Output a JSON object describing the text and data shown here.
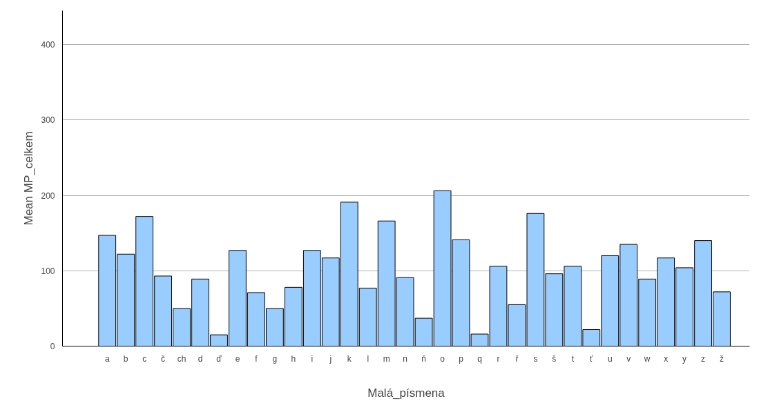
{
  "chart_data": {
    "type": "bar",
    "xlabel": "Malá_písmena",
    "ylabel": "Mean MP_celkem",
    "categories": [
      "a",
      "b",
      "c",
      "č",
      "ch",
      "d",
      "ď",
      "e",
      "f",
      "g",
      "h",
      "i",
      "j",
      "k",
      "l",
      "m",
      "n",
      "ň",
      "o",
      "p",
      "q",
      "r",
      "ř",
      "s",
      "š",
      "t",
      "ť",
      "u",
      "v",
      "w",
      "x",
      "y",
      "z",
      "ž"
    ],
    "values": [
      147,
      122,
      172,
      93,
      50,
      89,
      15,
      127,
      71,
      50,
      78,
      127,
      117,
      191,
      77,
      166,
      91,
      37,
      206,
      141,
      16,
      106,
      55,
      176,
      96,
      106,
      22,
      120,
      135,
      89,
      117,
      104,
      140,
      72
    ],
    "color": "#99ccff",
    "ylim": [
      0,
      445
    ],
    "yticks": [
      0,
      100,
      200,
      300,
      400
    ],
    "grid": "y"
  }
}
